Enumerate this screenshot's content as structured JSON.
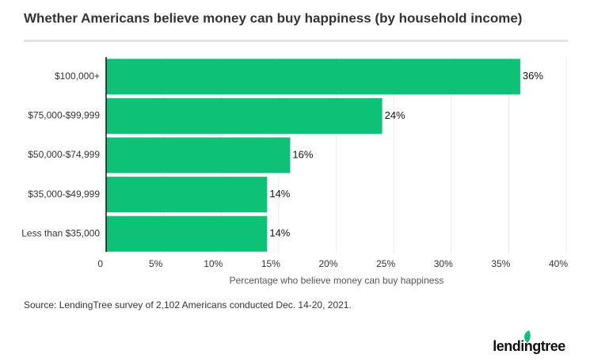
{
  "chart_data": {
    "type": "barh",
    "title": "Whether Americans believe money can buy happiness (by household income)",
    "categories": [
      "$100,000+",
      "$75,000-$99,999",
      "$50,000-$74,999",
      "$35,000-$49,999",
      "Less than $35,000"
    ],
    "values": [
      36,
      24,
      16,
      14,
      14
    ],
    "value_labels": [
      "36%",
      "24%",
      "16%",
      "14%",
      "14%"
    ],
    "color": "#0dc177",
    "xlabel": "Percentage who believe money can buy happiness",
    "xlim": [
      0,
      40
    ],
    "xticks": [
      0,
      {
        "value": 5,
        "label": "5%"
      },
      {
        "value": 10,
        "label": "10%"
      },
      {
        "value": 15,
        "label": "15%"
      },
      {
        "value": 20,
        "label": "20%"
      },
      {
        "value": 25,
        "label": "25%"
      },
      {
        "value": 30,
        "label": "30%"
      },
      {
        "value": 35,
        "label": "35%"
      },
      {
        "value": 40,
        "label": "40%"
      }
    ],
    "grid": true,
    "source": "Source: LendingTree survey of 2,102 Americans conducted Dec. 14-20, 2021.",
    "logo": "lendingtree"
  }
}
